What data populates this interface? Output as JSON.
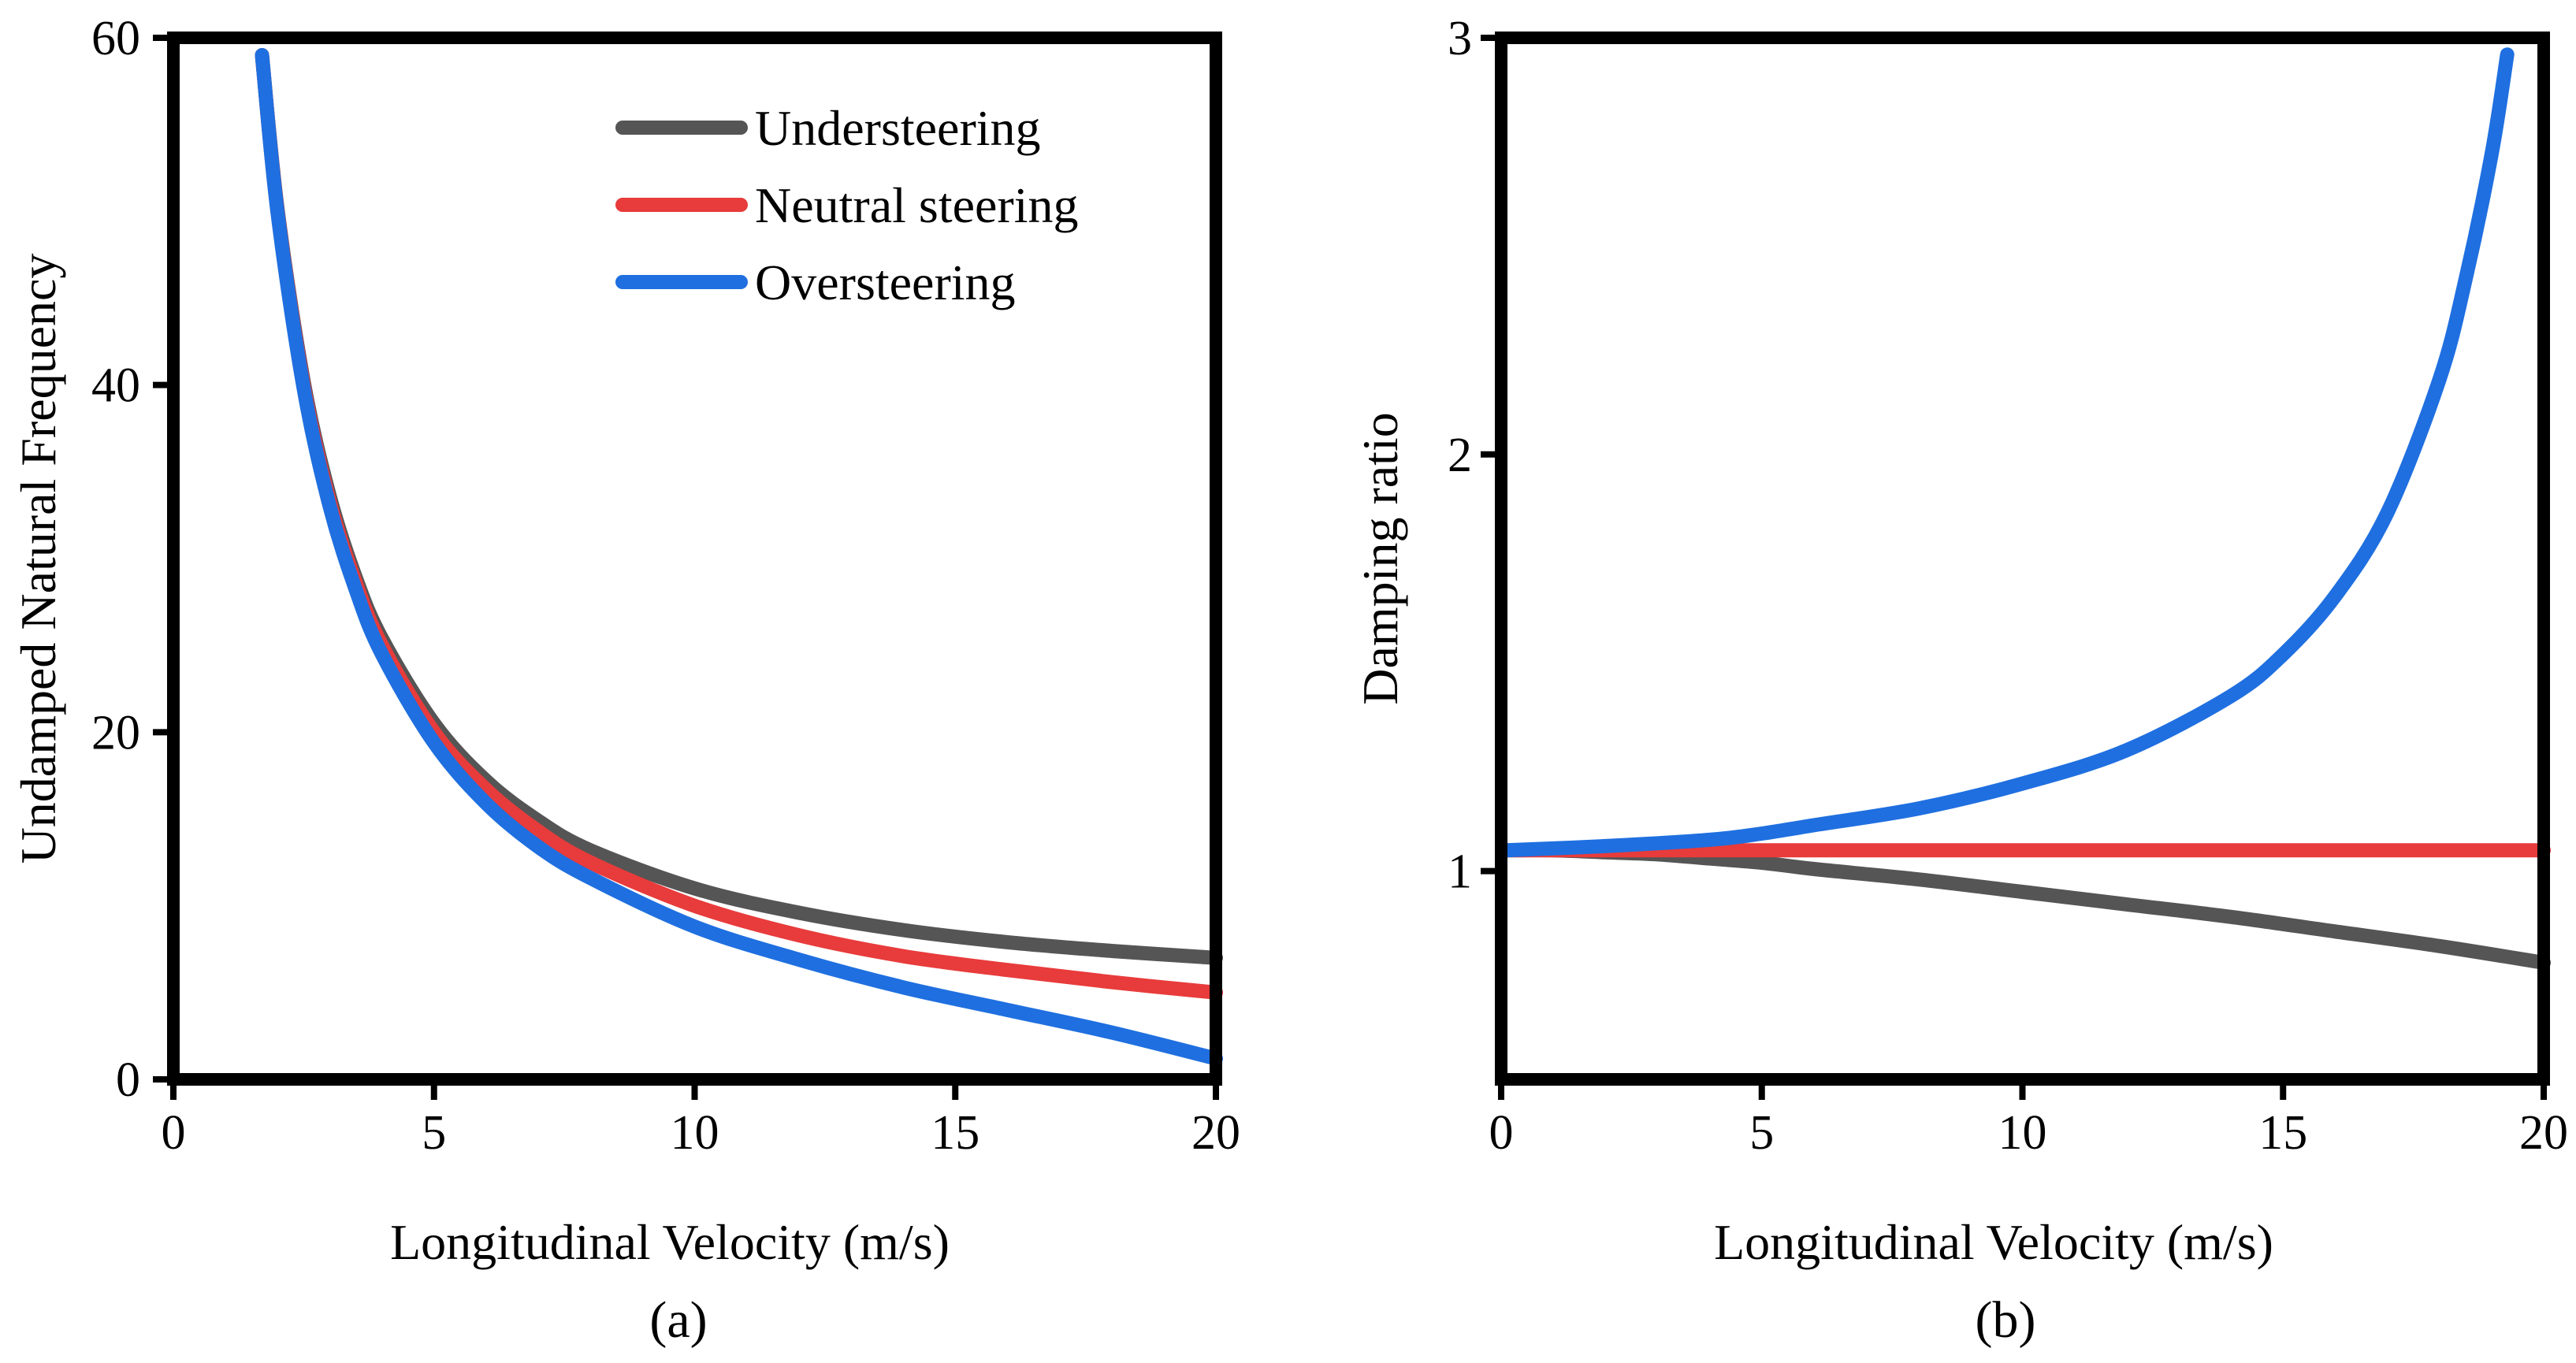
{
  "chart_data": [
    {
      "id": "a",
      "type": "line",
      "caption": "(a)",
      "xlabel": "Longitudinal Velocity (m/s)",
      "ylabel": "Undamped Natural Frequency",
      "xlim": [
        0,
        20
      ],
      "ylim": [
        0,
        60
      ],
      "xticks": [
        0,
        5,
        10,
        15,
        20
      ],
      "yticks": [
        0,
        20,
        40,
        60
      ],
      "legend_position": "top-right",
      "series": [
        {
          "name": "Understeering",
          "color": "#555555",
          "x": [
            1.7,
            2,
            2.5,
            3,
            3.5,
            4,
            5,
            6,
            7,
            8,
            10,
            12,
            14,
            16,
            18,
            20
          ],
          "y": [
            59,
            50.1,
            40.2,
            33.6,
            28.9,
            25.4,
            20.5,
            17.2,
            14.9,
            13.2,
            11,
            9.6,
            8.6,
            7.9,
            7.4,
            7
          ]
        },
        {
          "name": "Neutral steering",
          "color": "#e83b3b",
          "x": [
            1.7,
            2,
            2.5,
            3,
            3.5,
            4,
            5,
            6,
            7,
            8,
            10,
            12,
            14,
            16,
            18,
            20
          ],
          "y": [
            59,
            50,
            40,
            33.3,
            28.6,
            25,
            20,
            16.7,
            14.3,
            12.5,
            10,
            8.3,
            7.1,
            6.3,
            5.6,
            5
          ]
        },
        {
          "name": "Oversteering",
          "color": "#1f6fe0",
          "x": [
            1.7,
            2,
            2.5,
            3,
            3.5,
            4,
            5,
            6,
            7,
            8,
            10,
            12,
            14,
            16,
            18,
            20
          ],
          "y": [
            59,
            49.9,
            39.8,
            33,
            28.2,
            24.5,
            19.4,
            15.9,
            13.4,
            11.6,
            8.8,
            6.9,
            5.3,
            4,
            2.7,
            1.2
          ]
        }
      ]
    },
    {
      "id": "b",
      "type": "line",
      "caption": "(b)",
      "xlabel": "Longitudinal Velocity (m/s)",
      "ylabel": "Damping ratio",
      "xlim": [
        0,
        20
      ],
      "ylim": [
        0.5,
        3
      ],
      "xticks": [
        0,
        5,
        10,
        15,
        20
      ],
      "yticks": [
        1,
        2,
        3
      ],
      "series": [
        {
          "name": "Understeering",
          "color": "#555555",
          "x": [
            0.1,
            1,
            2,
            3,
            4,
            5,
            6,
            8,
            10,
            12,
            14,
            16,
            18,
            20
          ],
          "y": [
            1.05,
            1.05,
            1.045,
            1.04,
            1.03,
            1.02,
            1.005,
            0.98,
            0.95,
            0.92,
            0.89,
            0.855,
            0.82,
            0.78
          ]
        },
        {
          "name": "Neutral steering",
          "color": "#e83b3b",
          "x": [
            0.1,
            20
          ],
          "y": [
            1.05,
            1.05
          ]
        },
        {
          "name": "Oversteering",
          "color": "#1f6fe0",
          "x": [
            0.1,
            2,
            4,
            5,
            6,
            8,
            10,
            12,
            14,
            15,
            16,
            17,
            18,
            18.5,
            19,
            19.3
          ],
          "y": [
            1.05,
            1.06,
            1.075,
            1.09,
            1.11,
            1.15,
            1.21,
            1.29,
            1.42,
            1.52,
            1.66,
            1.86,
            2.18,
            2.42,
            2.72,
            2.96
          ]
        }
      ]
    }
  ]
}
